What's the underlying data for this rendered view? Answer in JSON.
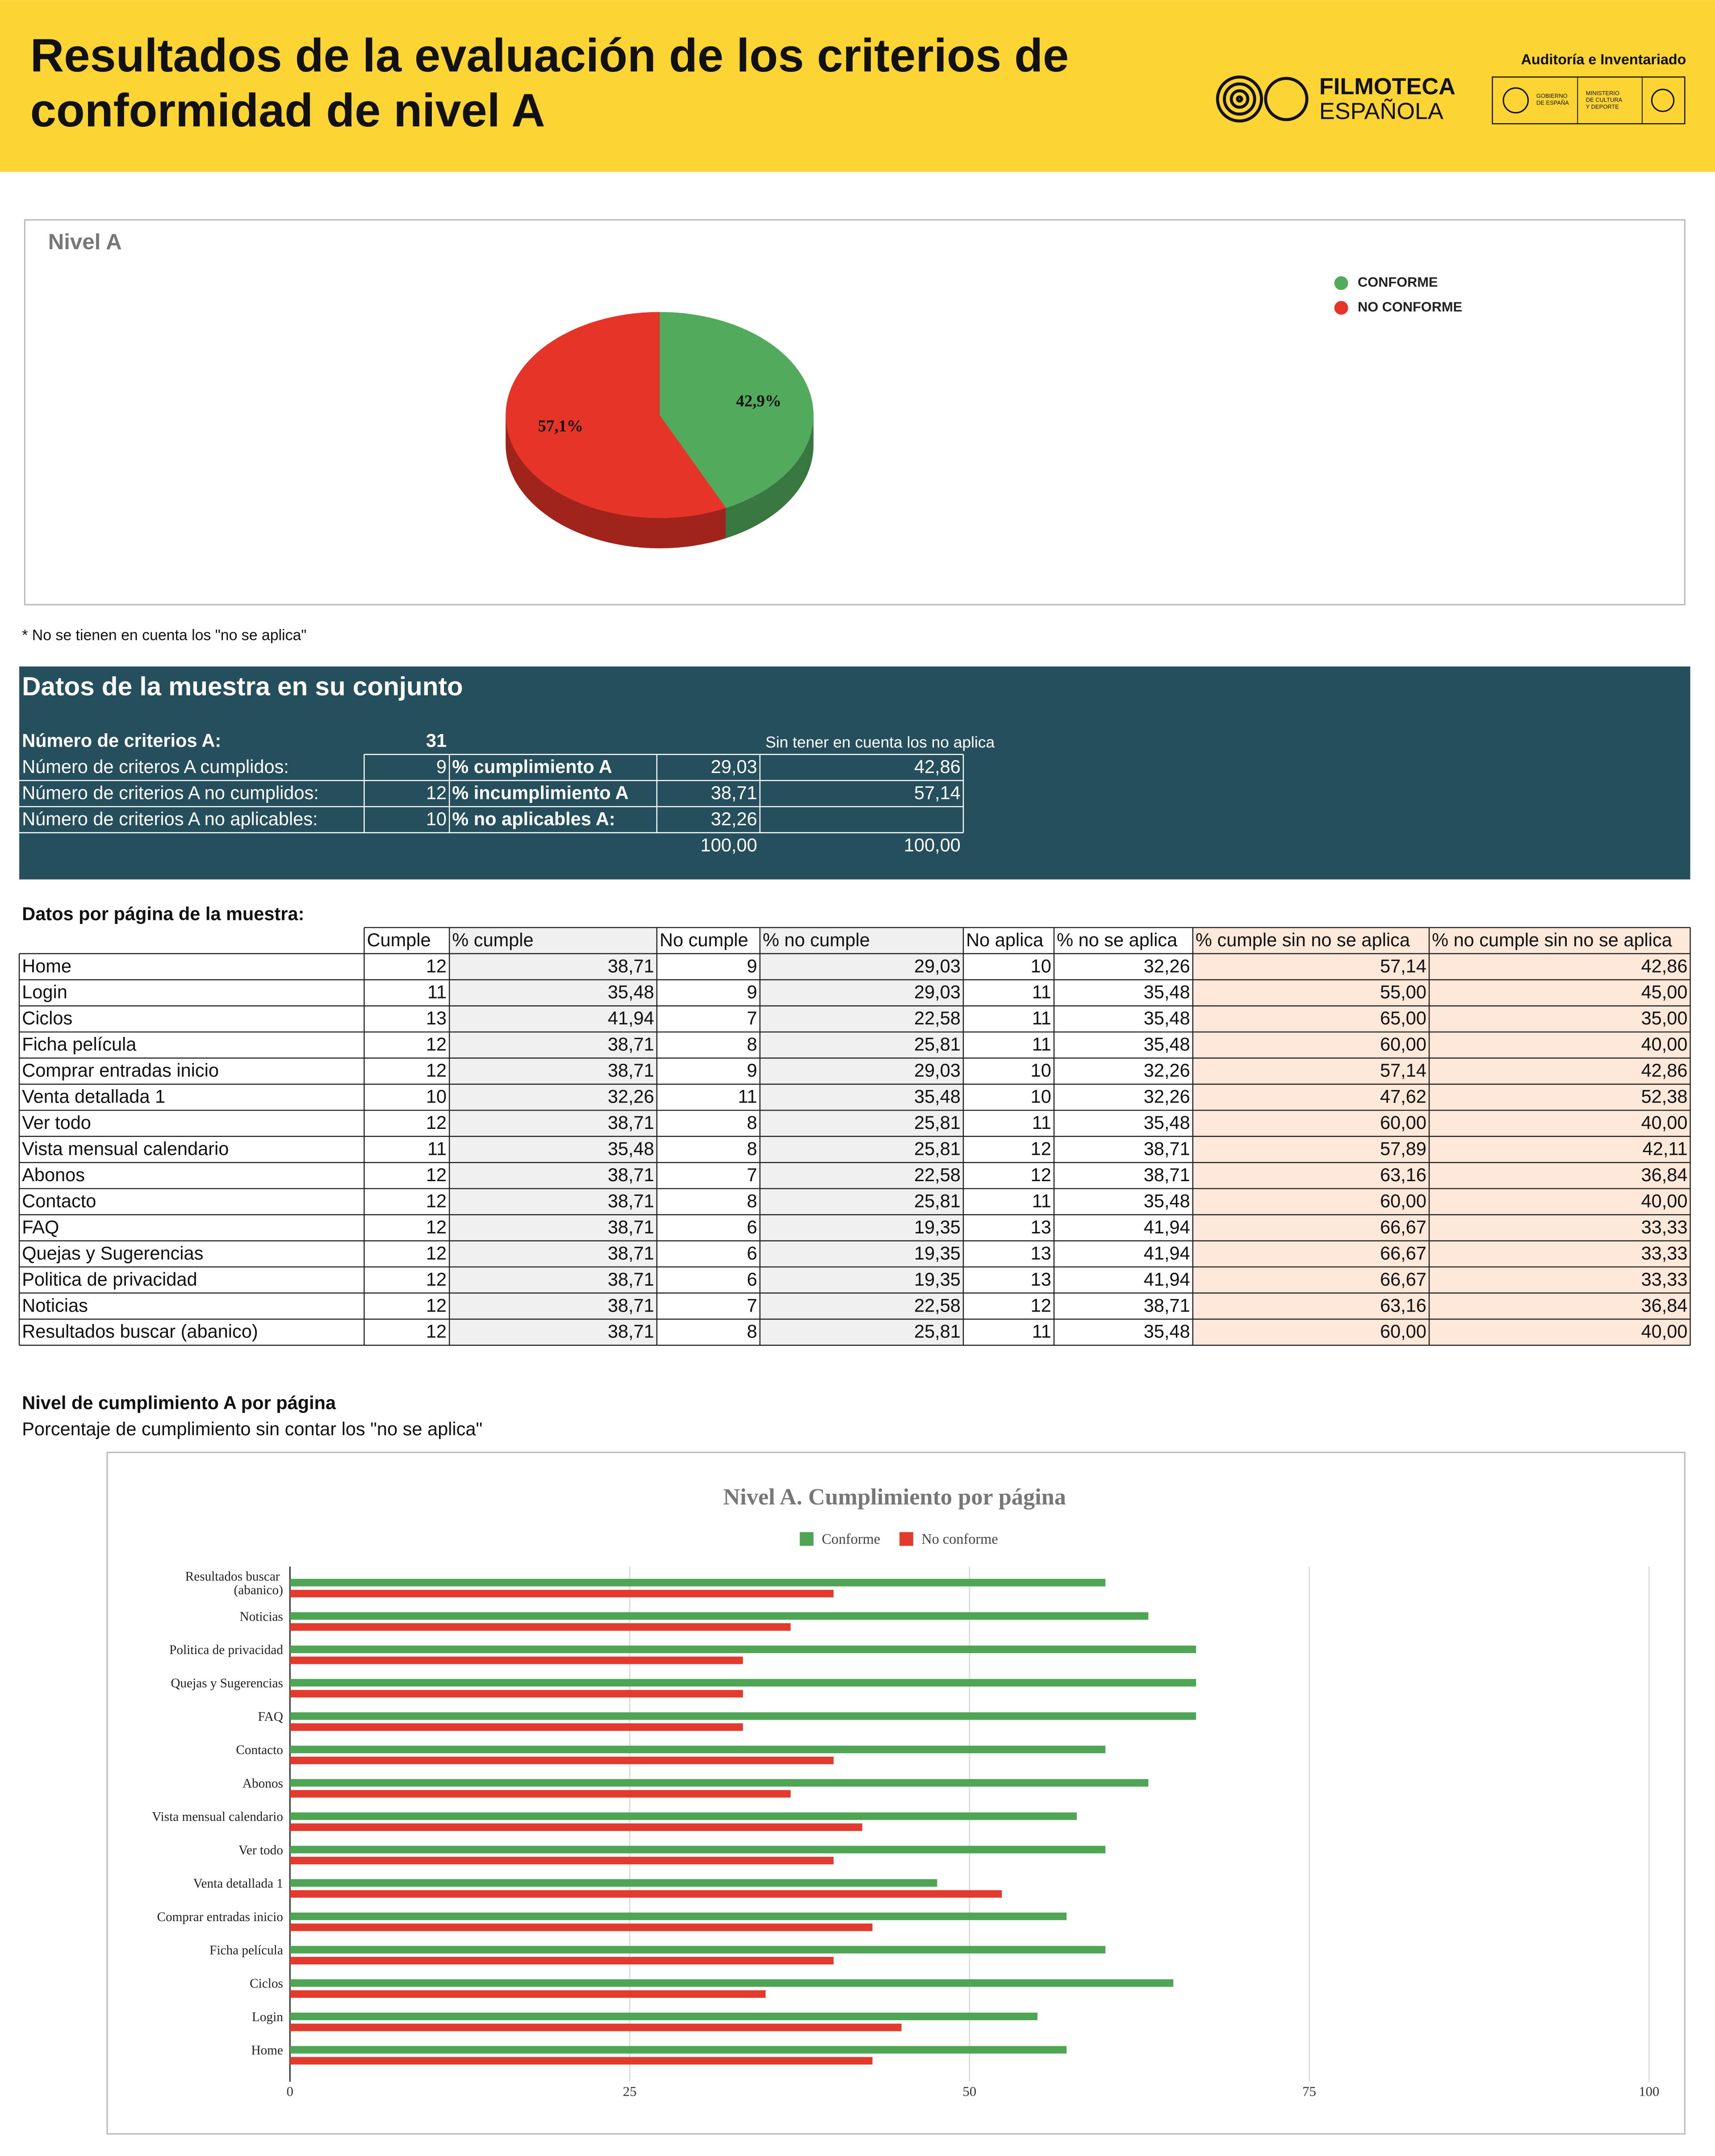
{
  "header": {
    "title_lines": [
      "Resultados de la evaluación de los criterios de",
      "conformidad de nivel A"
    ],
    "logo_lines": [
      "FILMOTECA",
      "ESPAÑOLA"
    ],
    "badge": "Auditoría e Inventariado",
    "gov_lines": [
      "GOBIERNO",
      "DE ESPAÑA"
    ],
    "ministry_lines": [
      "MINISTERIO",
      "DE CULTURA",
      "Y DEPORTE"
    ]
  },
  "chart_data": [
    {
      "type": "pie",
      "title": "Nivel A",
      "categories": [
        "CONFORME",
        "NO CONFORME"
      ],
      "values": [
        42.9,
        57.1
      ],
      "value_labels": [
        "42,9%",
        "57,1%"
      ],
      "colors": [
        "#52ab5c",
        "#e63428"
      ]
    },
    {
      "type": "bar",
      "orientation": "horizontal",
      "title": "Nivel A. Cumplimiento por página",
      "categories": [
        "Home",
        "Login",
        "Ciclos",
        "Ficha película",
        "Comprar entradas inicio",
        "Venta detallada 1",
        "Ver todo",
        "Vista mensual calendario",
        "Abonos",
        "Contacto",
        "FAQ",
        "Quejas y Sugerencias",
        "Politica de privacidad",
        "Noticias",
        "Resultados buscar (abanico)"
      ],
      "series": [
        {
          "name": "Conforme",
          "color": "#4ea654",
          "values": [
            57.14,
            55.0,
            65.0,
            60.0,
            57.14,
            47.62,
            60.0,
            57.89,
            63.16,
            60.0,
            66.67,
            66.67,
            66.67,
            63.16,
            60.0
          ]
        },
        {
          "name": "No conforme",
          "color": "#e23a2d",
          "values": [
            42.86,
            45.0,
            35.0,
            40.0,
            42.86,
            52.38,
            40.0,
            42.11,
            36.84,
            40.0,
            33.33,
            33.33,
            33.33,
            36.84,
            40.0
          ]
        }
      ],
      "xlim": [
        0,
        100
      ],
      "xticks": [
        0,
        25,
        50,
        75,
        100
      ],
      "grid": true
    }
  ],
  "note": "* No se tienen en cuenta los \"no se aplica\"",
  "summary": {
    "title": "Datos de la muestra en su conjunto",
    "total_label": "Número de criterios A:",
    "total_value": "31",
    "note": "Sin tener en cuenta los no aplica",
    "rows": [
      [
        "Número de criteros A cumplidos:",
        "9",
        "% cumplimiento A",
        "29,03",
        "42,86"
      ],
      [
        "Número de criterios A no cumplidos:",
        "12",
        "% incumplimiento A",
        "38,71",
        "57,14"
      ],
      [
        "Número de criterios A no aplicables:",
        "10",
        "% no aplicables A:",
        "32,26"
      ]
    ],
    "totals": [
      "100,00",
      "100,00"
    ]
  },
  "table": {
    "title": "Datos por página de la muestra:",
    "headers": [
      "Cumple",
      "% cumple",
      "No cumple",
      "% no cumple",
      "No aplica",
      "% no se aplica",
      "% cumple sin no se aplica",
      "% no cumple sin no se aplica"
    ],
    "rows": [
      [
        "Home",
        "12",
        "38,71",
        "9",
        "29,03",
        "10",
        "32,26",
        "57,14",
        "42,86"
      ],
      [
        "Login",
        "11",
        "35,48",
        "9",
        "29,03",
        "11",
        "35,48",
        "55,00",
        "45,00"
      ],
      [
        "Ciclos",
        "13",
        "41,94",
        "7",
        "22,58",
        "11",
        "35,48",
        "65,00",
        "35,00"
      ],
      [
        "Ficha película",
        "12",
        "38,71",
        "8",
        "25,81",
        "11",
        "35,48",
        "60,00",
        "40,00"
      ],
      [
        "Comprar entradas inicio",
        "12",
        "38,71",
        "9",
        "29,03",
        "10",
        "32,26",
        "57,14",
        "42,86"
      ],
      [
        "Venta detallada 1",
        "10",
        "32,26",
        "11",
        "35,48",
        "10",
        "32,26",
        "47,62",
        "52,38"
      ],
      [
        "Ver todo",
        "12",
        "38,71",
        "8",
        "25,81",
        "11",
        "35,48",
        "60,00",
        "40,00"
      ],
      [
        "Vista mensual calendario",
        "11",
        "35,48",
        "8",
        "25,81",
        "12",
        "38,71",
        "57,89",
        "42,11"
      ],
      [
        "Abonos",
        "12",
        "38,71",
        "7",
        "22,58",
        "12",
        "38,71",
        "63,16",
        "36,84"
      ],
      [
        "Contacto",
        "12",
        "38,71",
        "8",
        "25,81",
        "11",
        "35,48",
        "60,00",
        "40,00"
      ],
      [
        "FAQ",
        "12",
        "38,71",
        "6",
        "19,35",
        "13",
        "41,94",
        "66,67",
        "33,33"
      ],
      [
        "Quejas y Sugerencias",
        "12",
        "38,71",
        "6",
        "19,35",
        "13",
        "41,94",
        "66,67",
        "33,33"
      ],
      [
        "Politica de privacidad",
        "12",
        "38,71",
        "6",
        "19,35",
        "13",
        "41,94",
        "66,67",
        "33,33"
      ],
      [
        "Noticias",
        "12",
        "38,71",
        "7",
        "22,58",
        "12",
        "38,71",
        "63,16",
        "36,84"
      ],
      [
        "Resultados buscar (abanico)",
        "12",
        "38,71",
        "8",
        "25,81",
        "11",
        "35,48",
        "60,00",
        "40,00"
      ]
    ]
  },
  "section": {
    "title": "Nivel de cumplimiento A por página",
    "subtitle": "Porcentaje de cumplimiento sin contar los \"no se aplica\""
  }
}
